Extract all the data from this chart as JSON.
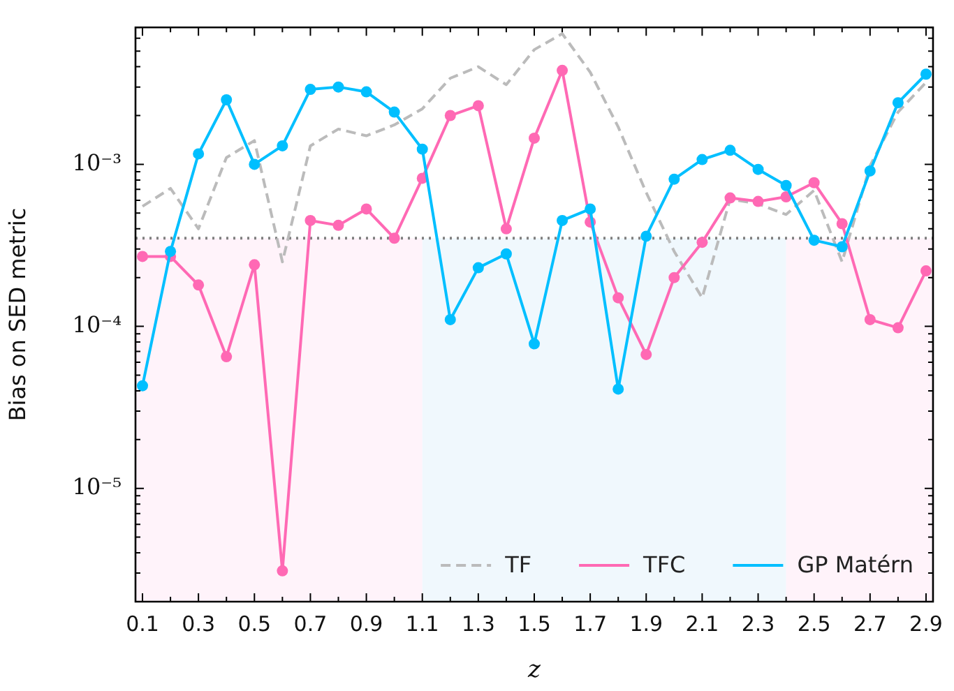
{
  "chart_data": {
    "type": "line",
    "xlabel": "z",
    "ylabel": "Bias on SED metric",
    "x": [
      0.1,
      0.2,
      0.3,
      0.4,
      0.5,
      0.6,
      0.7,
      0.8,
      0.9,
      1.0,
      1.1,
      1.2,
      1.3,
      1.4,
      1.5,
      1.6,
      1.7,
      1.8,
      1.9,
      2.0,
      2.1,
      2.2,
      2.3,
      2.4,
      2.5,
      2.6,
      2.7,
      2.8,
      2.9
    ],
    "series": [
      {
        "name": "TF",
        "color": "#bbbbbb",
        "marker": "none",
        "line_style": "dashed",
        "values": [
          0.00055,
          0.00071,
          0.0004,
          0.0011,
          0.0014,
          0.00025,
          0.0013,
          0.00165,
          0.0015,
          0.00175,
          0.0022,
          0.0034,
          0.004,
          0.0031,
          0.0051,
          0.0064,
          0.0037,
          0.0017,
          0.00067,
          0.00029,
          0.00015,
          0.00061,
          0.00057,
          0.00049,
          0.00069,
          0.00025,
          0.00098,
          0.0021,
          0.0032
        ]
      },
      {
        "name": "TFC",
        "color": "#ff69b4",
        "marker": "circle",
        "line_style": "solid",
        "values": [
          0.00027,
          0.00027,
          0.00018,
          6.5e-05,
          0.00024,
          3.1e-06,
          0.00045,
          0.00042,
          0.00053,
          0.00035,
          0.00082,
          0.002,
          0.0023,
          0.0004,
          0.00145,
          0.0038,
          0.00044,
          0.00015,
          6.7e-05,
          0.0002,
          0.00033,
          0.00062,
          0.00059,
          0.00063,
          0.00077,
          0.00043,
          0.00011,
          9.8e-05,
          0.00022
        ]
      },
      {
        "name": "GP Matérn",
        "color": "#00bfff",
        "marker": "circle",
        "line_style": "solid",
        "values": [
          4.3e-05,
          0.00029,
          0.00116,
          0.0025,
          0.001,
          0.0013,
          0.0029,
          0.003,
          0.0028,
          0.0021,
          0.00124,
          0.00011,
          0.00023,
          0.00028,
          7.8e-05,
          0.00045,
          0.00053,
          4.1e-05,
          0.00036,
          0.00081,
          0.00107,
          0.00122,
          0.00093,
          0.00074,
          0.00034,
          0.00031,
          0.00091,
          0.0024,
          0.0036
        ]
      }
    ],
    "log": "y",
    "xlim": [
      0.075,
      2.925
    ],
    "ylim": [
      2e-06,
      0.007
    ],
    "xticks": [
      0.1,
      {
        "value": 0.2,
        "label": null
      },
      0.3,
      {
        "value": 0.4,
        "label": null
      },
      0.5,
      {
        "value": 0.6,
        "label": null
      },
      0.7,
      {
        "value": 0.8,
        "label": null
      },
      0.9,
      {
        "value": 1.0,
        "label": null
      },
      1.1,
      {
        "value": 1.2,
        "label": null
      },
      1.3,
      {
        "value": 1.4,
        "label": null
      },
      1.5,
      {
        "value": 1.6,
        "label": null
      },
      1.7,
      {
        "value": 1.8,
        "label": null
      },
      1.9,
      {
        "value": 2.0,
        "label": null
      },
      2.1,
      {
        "value": 2.2,
        "label": null
      },
      2.3,
      {
        "value": 2.4,
        "label": null
      },
      2.5,
      {
        "value": 2.6,
        "label": null
      },
      2.7,
      {
        "value": 2.8,
        "label": null
      },
      2.9
    ],
    "yticks": [
      {
        "value": 2e-06,
        "label": null
      },
      {
        "value": 3e-06,
        "label": null
      },
      {
        "value": 4e-06,
        "label": null
      },
      {
        "value": 5e-06,
        "label": null
      },
      {
        "value": 6e-06,
        "label": null
      },
      {
        "value": 7e-06,
        "label": null
      },
      {
        "value": 8e-06,
        "label": null
      },
      {
        "value": 9e-06,
        "label": null
      },
      {
        "value": 1e-05,
        "label": "10⁻⁵"
      },
      {
        "value": 2e-05,
        "label": null
      },
      {
        "value": 3e-05,
        "label": null
      },
      {
        "value": 4e-05,
        "label": null
      },
      {
        "value": 5e-05,
        "label": null
      },
      {
        "value": 6e-05,
        "label": null
      },
      {
        "value": 7e-05,
        "label": null
      },
      {
        "value": 8e-05,
        "label": null
      },
      {
        "value": 9e-05,
        "label": null
      },
      {
        "value": 0.0001,
        "label": "10⁻⁴"
      },
      {
        "value": 0.0002,
        "label": null
      },
      {
        "value": 0.0003,
        "label": null
      },
      {
        "value": 0.0004,
        "label": null
      },
      {
        "value": 0.0005,
        "label": null
      },
      {
        "value": 0.0006,
        "label": null
      },
      {
        "value": 0.0007,
        "label": null
      },
      {
        "value": 0.0008,
        "label": null
      },
      {
        "value": 0.0009,
        "label": null
      },
      {
        "value": 0.001,
        "label": "10⁻³"
      },
      {
        "value": 0.002,
        "label": null
      },
      {
        "value": 0.003,
        "label": null
      },
      {
        "value": 0.004,
        "label": null
      },
      {
        "value": 0.005,
        "label": null
      },
      {
        "value": 0.006,
        "label": null
      },
      {
        "value": 0.007,
        "label": null
      }
    ],
    "ref_lines": [
      {
        "axis": "y",
        "value": 0.00035,
        "color": "#808080",
        "line_style": "dotted"
      }
    ],
    "bands": [
      {
        "axis": "x",
        "from": 0.075,
        "to": 1.1,
        "color": "#fff3fa"
      },
      {
        "axis": "x",
        "from": 1.1,
        "to": 2.4,
        "color": "#f0f8fd"
      },
      {
        "axis": "x",
        "from": 2.4,
        "to": 2.925,
        "color": "#fff3fa"
      }
    ],
    "legend": "bottom right",
    "grid": false
  }
}
